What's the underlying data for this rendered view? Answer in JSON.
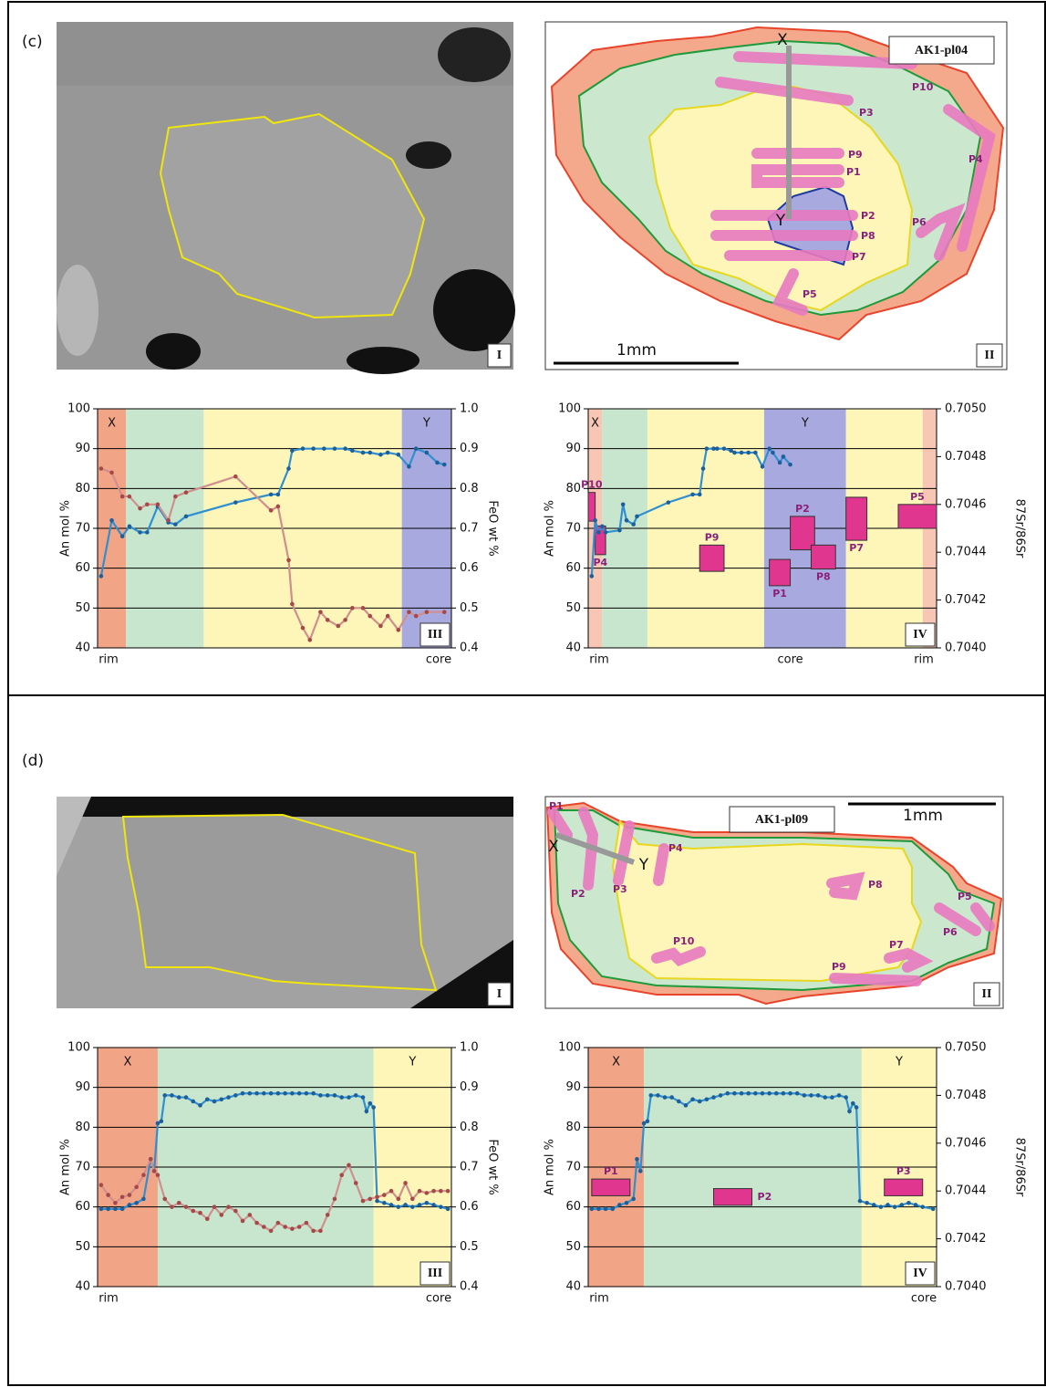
{
  "figure": {
    "panels": [
      {
        "label": "(c)",
        "image": {
          "label": "I"
        },
        "diagram": {
          "label": "II",
          "sample": "AK1-pl04",
          "scale": "1mm",
          "points": [
            "X",
            "Y"
          ],
          "spots": [
            "P1",
            "P2",
            "P3",
            "P4",
            "P5",
            "P6",
            "P7",
            "P8",
            "P9",
            "P10"
          ]
        }
      },
      {
        "label": "(d)",
        "image": {
          "label": "I"
        },
        "diagram": {
          "label": "II",
          "sample": "AK1-pl09",
          "scale": "1mm",
          "points": [
            "X",
            "Y"
          ],
          "spots": [
            "P1",
            "P2",
            "P3",
            "P4",
            "P5",
            "P6",
            "P7",
            "P8",
            "P9",
            "P10"
          ]
        }
      }
    ]
  },
  "chart_data": [
    {
      "type": "line",
      "panel_label": "III",
      "ylabel": "An mol %",
      "y2label": "FeO wt %",
      "xlim": [
        0,
        100
      ],
      "xticks": [
        {
          "value": 0,
          "label": "rim"
        },
        {
          "value": 100,
          "label": "core"
        }
      ],
      "ylim": [
        40,
        100
      ],
      "yticks": [
        40,
        50,
        60,
        70,
        80,
        90,
        100
      ],
      "y2lim": [
        0.4,
        1
      ],
      "y2ticks": [
        0.4,
        0.5,
        0.6,
        0.7,
        0.8,
        0.9,
        {
          "value": 1,
          "label": "1.0"
        }
      ],
      "grid": true,
      "zones": [
        {
          "from": 0,
          "to": 8,
          "color": "#f2a487",
          "label": "X"
        },
        {
          "from": 8,
          "to": 30,
          "color": "#c8e6cd"
        },
        {
          "from": 30,
          "to": 86,
          "color": "#fdf6b8"
        },
        {
          "from": 86,
          "to": 100,
          "color": "#a8aadf",
          "label": "Y"
        }
      ],
      "series": [
        {
          "color": "#2f8fd0",
          "marker_color": "#1d5f9a",
          "x": [
            1,
            4,
            7,
            9,
            12,
            14,
            17,
            20,
            22,
            25,
            39,
            49,
            51,
            54,
            55,
            58,
            61,
            64,
            67,
            70,
            72,
            75,
            77,
            80,
            82,
            85,
            88,
            90,
            93,
            96,
            98
          ],
          "values": [
            58,
            72,
            68,
            70.5,
            69,
            69,
            75.5,
            71.5,
            71,
            73,
            76.5,
            78.5,
            78.5,
            85,
            89.5,
            90,
            90,
            90,
            90,
            90,
            89.5,
            89,
            89,
            88.5,
            89,
            88.5,
            85.5,
            90,
            89,
            86.5,
            86
          ]
        },
        {
          "color": "#cf8f8f",
          "marker_color": "#a54848",
          "axis": "y2",
          "x": [
            1,
            4,
            7,
            9,
            12,
            14,
            17,
            20,
            22,
            25,
            39,
            49,
            51,
            54,
            55,
            58,
            60,
            63,
            65,
            68,
            70,
            72,
            75,
            77,
            80,
            82,
            85,
            88,
            90,
            93,
            98
          ],
          "values": [
            0.85,
            0.84,
            0.78,
            0.78,
            0.75,
            0.76,
            0.76,
            0.72,
            0.78,
            0.79,
            0.83,
            0.745,
            0.755,
            0.62,
            0.51,
            0.45,
            0.42,
            0.49,
            0.47,
            0.455,
            0.47,
            0.5,
            0.5,
            0.48,
            0.455,
            0.48,
            0.445,
            0.49,
            0.48,
            0.49,
            0.49
          ]
        }
      ]
    },
    {
      "type": "line",
      "panel_label": "IV",
      "ylabel": "An mol %",
      "y2label": "87Sr/86Sr",
      "xlim": [
        0,
        100
      ],
      "xticks": [
        {
          "value": 0,
          "label": "rim"
        },
        {
          "value": 58,
          "label": "core"
        },
        {
          "value": 100,
          "label": "rim"
        }
      ],
      "ylim": [
        40,
        100
      ],
      "yticks": [
        40,
        50,
        60,
        70,
        80,
        90,
        100
      ],
      "y2lim": [
        0.704,
        0.705
      ],
      "y2ticks": [
        {
          "value": 0.704,
          "label": "0.7040"
        },
        0.7042,
        0.7044,
        0.7046,
        0.7048,
        {
          "value": 0.705,
          "label": "0.7050"
        }
      ],
      "grid": true,
      "zones": [
        {
          "from": 0,
          "to": 4,
          "color": "#f7c6b5",
          "label": "X"
        },
        {
          "from": 4,
          "to": 17,
          "color": "#c8e6cd"
        },
        {
          "from": 17,
          "to": 50.5,
          "color": "#fdf6b8"
        },
        {
          "from": 50.5,
          "to": 74,
          "color": "#a8aadf",
          "label": "Y"
        },
        {
          "from": 74,
          "to": 96,
          "color": "#fdf6b8"
        },
        {
          "from": 96,
          "to": 100,
          "color": "#f7c6b5"
        }
      ],
      "series": [
        {
          "color": "#2f8fd0",
          "marker_color": "#1d5f9a",
          "x": [
            1,
            2,
            3,
            4,
            5,
            9,
            10,
            11,
            13,
            14,
            23,
            30,
            32,
            33,
            34,
            36,
            37,
            39,
            41,
            42,
            44,
            46,
            48,
            50,
            52,
            53,
            55,
            56,
            58
          ],
          "values": [
            58,
            72,
            69,
            70.5,
            69,
            69.5,
            76,
            72,
            71,
            73,
            76.5,
            78.5,
            78.5,
            85,
            90,
            90,
            90,
            90,
            89.5,
            89,
            89,
            89,
            89,
            85.5,
            90,
            89,
            86.5,
            88,
            86
          ]
        }
      ],
      "boxes": [
        {
          "label": "P10",
          "x": [
            0,
            2
          ],
          "values": [
            0.70453,
            0.70465
          ],
          "label_position": "above"
        },
        {
          "label": "P4",
          "x": [
            2,
            5
          ],
          "values": [
            0.70439,
            0.70451
          ],
          "label_position": "below"
        },
        {
          "label": "P9",
          "x": [
            32,
            39
          ],
          "values": [
            0.70432,
            0.70443
          ],
          "label_position": "above"
        },
        {
          "label": "P1",
          "x": [
            52,
            58
          ],
          "values": [
            0.70426,
            0.70437
          ],
          "label_position": "below"
        },
        {
          "label": "P2",
          "x": [
            58,
            65
          ],
          "values": [
            0.70441,
            0.70455
          ],
          "label_position": "above"
        },
        {
          "label": "P8",
          "x": [
            64,
            71
          ],
          "values": [
            0.70433,
            0.70443
          ],
          "label_position": "below"
        },
        {
          "label": "P7",
          "x": [
            74,
            80
          ],
          "values": [
            0.70445,
            0.70463
          ],
          "label_position": "below"
        },
        {
          "label": "P5",
          "x": [
            89,
            100
          ],
          "values": [
            0.7045,
            0.7046
          ],
          "label_position": "above"
        }
      ],
      "box_color": "#e0368f"
    },
    {
      "type": "line",
      "panel_label": "III",
      "ylabel": "An mol %",
      "y2label": "FeO wt %",
      "xlim": [
        0,
        100
      ],
      "xticks": [
        {
          "value": 0,
          "label": "rim"
        },
        {
          "value": 100,
          "label": "core"
        }
      ],
      "ylim": [
        40,
        100
      ],
      "yticks": [
        40,
        50,
        60,
        70,
        80,
        90,
        100
      ],
      "y2lim": [
        0.4,
        1
      ],
      "y2ticks": [
        0.4,
        0.5,
        0.6,
        0.7,
        0.8,
        0.9,
        {
          "value": 1,
          "label": "1.0"
        }
      ],
      "grid": true,
      "zones": [
        {
          "from": 0,
          "to": 17,
          "color": "#f2a487",
          "label": "X"
        },
        {
          "from": 17,
          "to": 78,
          "color": "#c8e6cd"
        },
        {
          "from": 78,
          "to": 100,
          "color": "#fdf6b8",
          "label": "Y"
        }
      ],
      "series": [
        {
          "color": "#2f8fd0",
          "marker_color": "#1d5f9a",
          "x": [
            1,
            3,
            5,
            7,
            9,
            11,
            13,
            15,
            16,
            17,
            18,
            19,
            21,
            23,
            25,
            27,
            29,
            31,
            33,
            35,
            37,
            39,
            41,
            43,
            45,
            47,
            49,
            51,
            53,
            55,
            57,
            59,
            61,
            63,
            65,
            67,
            69,
            71,
            73,
            75,
            76,
            77,
            78,
            79,
            81,
            83,
            85,
            87,
            89,
            91,
            93,
            95,
            97,
            99
          ],
          "values": [
            59.5,
            59.5,
            59.5,
            59.5,
            60.5,
            61,
            62,
            72,
            69,
            81,
            81.5,
            88,
            88,
            87.5,
            87.5,
            86.5,
            85.5,
            87,
            86.5,
            87,
            87.5,
            88,
            88.5,
            88.5,
            88.5,
            88.5,
            88.5,
            88.5,
            88.5,
            88.5,
            88.5,
            88.5,
            88.5,
            88,
            88,
            88,
            87.5,
            87.5,
            88,
            87.5,
            84,
            86,
            85,
            61.5,
            61,
            60.5,
            60,
            60.5,
            60,
            60.5,
            61,
            60.5,
            60,
            59.5
          ]
        },
        {
          "color": "#cf8f8f",
          "marker_color": "#a54848",
          "axis": "y2",
          "x": [
            1,
            3,
            5,
            7,
            9,
            11,
            13,
            15,
            16,
            17,
            19,
            21,
            23,
            25,
            27,
            29,
            31,
            33,
            35,
            37,
            39,
            41,
            43,
            45,
            47,
            49,
            51,
            53,
            55,
            57,
            59,
            61,
            63,
            65,
            67,
            69,
            71,
            73,
            75,
            77,
            79,
            81,
            83,
            85,
            87,
            89,
            91,
            93,
            95,
            97,
            99
          ],
          "values": [
            0.655,
            0.63,
            0.61,
            0.625,
            0.63,
            0.65,
            0.68,
            0.72,
            0.69,
            0.68,
            0.62,
            0.6,
            0.61,
            0.6,
            0.59,
            0.585,
            0.57,
            0.6,
            0.58,
            0.6,
            0.59,
            0.565,
            0.58,
            0.56,
            0.55,
            0.54,
            0.56,
            0.55,
            0.545,
            0.55,
            0.56,
            0.54,
            0.54,
            0.58,
            0.62,
            0.68,
            0.705,
            0.66,
            0.615,
            0.62,
            0.625,
            0.63,
            0.64,
            0.62,
            0.66,
            0.62,
            0.64,
            0.635,
            0.64,
            0.64,
            0.64
          ]
        }
      ]
    },
    {
      "type": "line",
      "panel_label": "IV",
      "ylabel": "An mol %",
      "y2label": "87Sr/86Sr",
      "xlim": [
        0,
        100
      ],
      "xticks": [
        {
          "value": 0,
          "label": "rim"
        },
        {
          "value": 100,
          "label": "core"
        }
      ],
      "ylim": [
        40,
        100
      ],
      "yticks": [
        40,
        50,
        60,
        70,
        80,
        90,
        100
      ],
      "y2lim": [
        0.704,
        0.705
      ],
      "y2ticks": [
        {
          "value": 0.704,
          "label": "0.7040"
        },
        0.7042,
        0.7044,
        0.7046,
        0.7048,
        {
          "value": 0.705,
          "label": "0.7050"
        }
      ],
      "grid": true,
      "zones": [
        {
          "from": 0,
          "to": 16,
          "color": "#f2a487",
          "label": "X"
        },
        {
          "from": 16,
          "to": 78.5,
          "color": "#c8e6cd"
        },
        {
          "from": 78.5,
          "to": 100,
          "color": "#fdf6b8",
          "label": "Y"
        }
      ],
      "series": [
        {
          "color": "#2f8fd0",
          "marker_color": "#1d5f9a",
          "x": [
            1,
            3,
            5,
            7,
            9,
            11,
            13,
            14,
            15,
            16,
            17,
            18,
            20,
            22,
            24,
            26,
            28,
            30,
            32,
            34,
            36,
            38,
            40,
            42,
            44,
            46,
            48,
            50,
            52,
            54,
            56,
            58,
            60,
            62,
            64,
            66,
            68,
            70,
            72,
            74,
            75,
            76,
            77,
            78,
            80,
            82,
            84,
            86,
            88,
            90,
            92,
            94,
            96,
            99
          ],
          "values": [
            59.5,
            59.5,
            59.5,
            59.5,
            60.5,
            61,
            62,
            72,
            69,
            81,
            81.5,
            88,
            88,
            87.5,
            87.5,
            86.5,
            85.5,
            87,
            86.5,
            87,
            87.5,
            88,
            88.5,
            88.5,
            88.5,
            88.5,
            88.5,
            88.5,
            88.5,
            88.5,
            88.5,
            88.5,
            88.5,
            88,
            88,
            88,
            87.5,
            87.5,
            88,
            87.5,
            84,
            86,
            85,
            61.5,
            61,
            60.5,
            60,
            60.5,
            60,
            60.5,
            61,
            60.5,
            60,
            59.5
          ]
        }
      ],
      "boxes": [
        {
          "label": "P1",
          "x": [
            1,
            12
          ],
          "values": [
            0.70438,
            0.70445
          ],
          "label_position": "above"
        },
        {
          "label": "P2",
          "x": [
            36,
            47
          ],
          "values": [
            0.70434,
            0.70441
          ],
          "label_position": "right"
        },
        {
          "label": "P3",
          "x": [
            85,
            96
          ],
          "values": [
            0.70438,
            0.70445
          ],
          "label_position": "above"
        }
      ],
      "box_color": "#e0368f"
    }
  ]
}
